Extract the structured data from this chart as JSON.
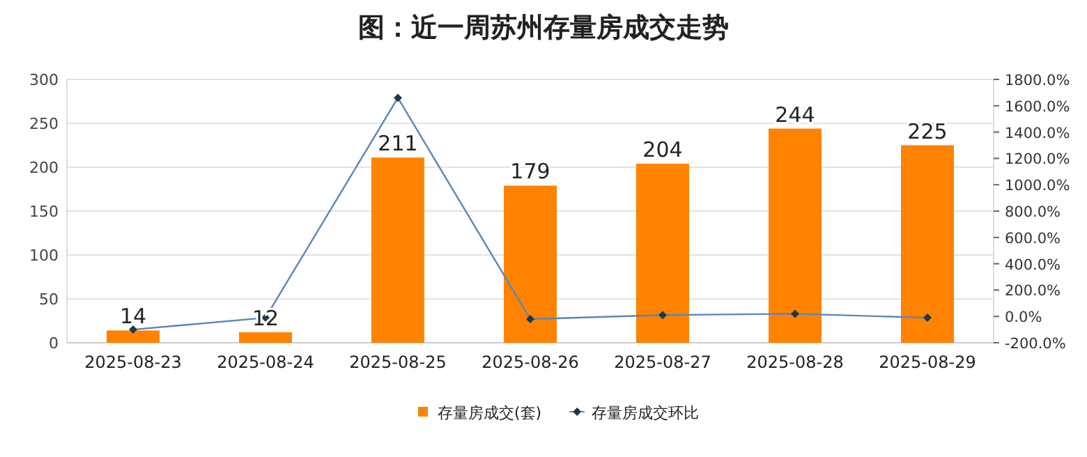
{
  "chart_data": {
    "type": "bar",
    "title": "图：近一周苏州存量房成交走势",
    "categories": [
      "2025-08-23",
      "2025-08-24",
      "2025-08-25",
      "2025-08-26",
      "2025-08-27",
      "2025-08-28",
      "2025-08-29"
    ],
    "series": [
      {
        "name": "存量房成交(套)",
        "color": "#ff8300",
        "values": [
          14,
          12,
          211,
          179,
          204,
          244,
          225
        ],
        "value_labels": [
          "14",
          "12",
          "211",
          "179",
          "204",
          "244",
          "225"
        ]
      },
      {
        "name": "存量房成交环比",
        "type": "line",
        "axis": "y2",
        "color": "#5b86b8",
        "marker": "diamond",
        "values": [
          -100,
          -10,
          1660,
          -20,
          10,
          20,
          -10
        ]
      }
    ],
    "ylim": [
      0,
      300
    ],
    "yticks": [
      0,
      50,
      100,
      150,
      200,
      250,
      300
    ],
    "y2lim": [
      -200,
      1800
    ],
    "y2ticks": [
      {
        "value": -200,
        "label": "-200.0%"
      },
      {
        "value": 0,
        "label": "0.0%"
      },
      {
        "value": 200,
        "label": "200.0%"
      },
      {
        "value": 400,
        "label": "400.0%"
      },
      {
        "value": 600,
        "label": "600.0%"
      },
      {
        "value": 800,
        "label": "800.0%"
      },
      {
        "value": 1000,
        "label": "1000.0%"
      },
      {
        "value": 1200,
        "label": "1200.0%"
      },
      {
        "value": 1400,
        "label": "1400.0%"
      },
      {
        "value": 1600,
        "label": "1600.0%"
      },
      {
        "value": 1800,
        "label": "1800.0%"
      }
    ],
    "grid": "y",
    "legend": "bottom"
  }
}
